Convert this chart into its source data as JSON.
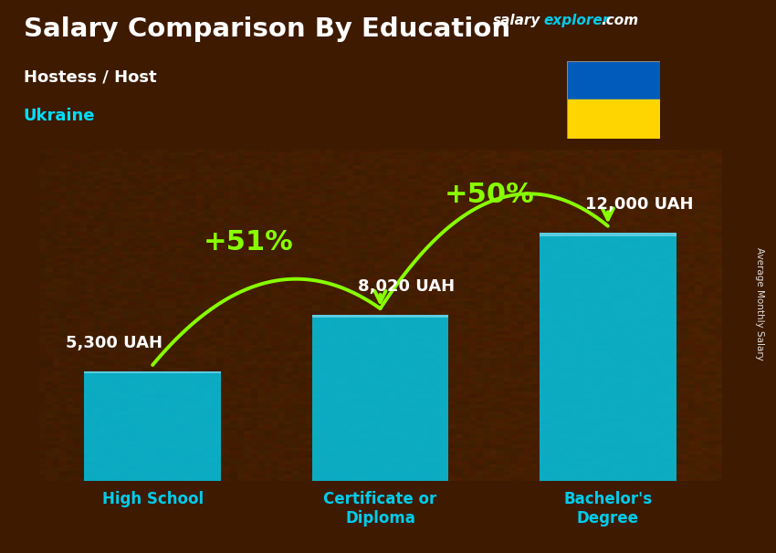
{
  "title": "Salary Comparison By Education",
  "subtitle": "Hostess / Host",
  "country": "Ukraine",
  "ylabel": "Average Monthly Salary",
  "categories": [
    "High School",
    "Certificate or\nDiploma",
    "Bachelor's\nDegree"
  ],
  "values": [
    5300,
    8020,
    12000
  ],
  "value_labels": [
    "5,300 UAH",
    "8,020 UAH",
    "12,000 UAH"
  ],
  "bar_color": "#00CCEE",
  "pct_labels": [
    "+51%",
    "+50%"
  ],
  "pct_color": "#88FF00",
  "bg_color": "#3d1a00",
  "title_color": "#FFFFFF",
  "subtitle_color": "#FFFFFF",
  "country_color": "#00DDFF",
  "value_color": "#FFFFFF",
  "xtick_color": "#00CCEE",
  "ukraine_flag_blue": "#005BBB",
  "ukraine_flag_yellow": "#FFD500",
  "ylim": [
    0,
    16000
  ],
  "bar_width": 0.6,
  "bar_alpha": 0.82,
  "site_text": "salaryexplorer.com",
  "site_salary_color": "#FFFFFF",
  "site_explorer_color": "#00CCEE",
  "site_com_color": "#FFFFFF"
}
